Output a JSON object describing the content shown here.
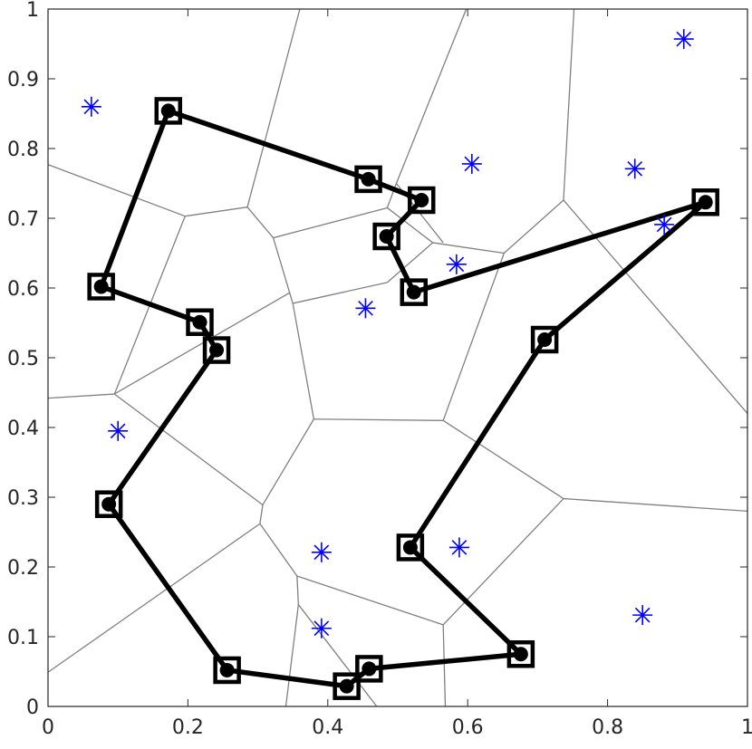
{
  "chart_data": {
    "type": "scatter",
    "title": "",
    "xlabel": "",
    "ylabel": "",
    "xlim": [
      0,
      1
    ],
    "ylim": [
      0,
      1
    ],
    "grid": false,
    "x_ticks": [
      "0",
      "0.2",
      "0.4",
      "0.6",
      "0.8",
      "1"
    ],
    "y_ticks": [
      "0",
      "0.1",
      "0.2",
      "0.3",
      "0.4",
      "0.5",
      "0.6",
      "0.7",
      "0.8",
      "0.9",
      "1"
    ],
    "colors": {
      "route": "#000000",
      "asterisk": "#0000ff",
      "voronoi": "#808080",
      "axes": "#262626"
    },
    "series": [
      {
        "marker": "asterisk",
        "points": [
          [
            0.062,
            0.86
          ],
          [
            0.1,
            0.395
          ],
          [
            0.391,
            0.221
          ],
          [
            0.391,
            0.112
          ],
          [
            0.454,
            0.571
          ],
          [
            0.584,
            0.634
          ],
          [
            0.606,
            0.778
          ],
          [
            0.588,
            0.228
          ],
          [
            0.839,
            0.771
          ],
          [
            0.881,
            0.691
          ],
          [
            0.909,
            0.957
          ],
          [
            0.85,
            0.131
          ]
        ]
      },
      {
        "marker": "circle-in-square",
        "connected": true,
        "closed": true,
        "points": [
          [
            0.172,
            0.854
          ],
          [
            0.458,
            0.756
          ],
          [
            0.534,
            0.726
          ],
          [
            0.484,
            0.674
          ],
          [
            0.523,
            0.594
          ],
          [
            0.94,
            0.723
          ],
          [
            0.71,
            0.526
          ],
          [
            0.518,
            0.228
          ],
          [
            0.676,
            0.075
          ],
          [
            0.459,
            0.054
          ],
          [
            0.427,
            0.029
          ],
          [
            0.256,
            0.052
          ],
          [
            0.087,
            0.29
          ],
          [
            0.241,
            0.511
          ],
          [
            0.217,
            0.551
          ],
          [
            0.076,
            0.602
          ]
        ]
      },
      {
        "marker": "voronoi-edges",
        "segments": [
          [
            [
              0.0,
              0.777
            ],
            [
              0.196,
              0.703
            ]
          ],
          [
            [
              0.196,
              0.703
            ],
            [
              0.285,
              0.716
            ]
          ],
          [
            [
              0.196,
              0.703
            ],
            [
              0.095,
              0.448
            ]
          ],
          [
            [
              0.0,
              0.442
            ],
            [
              0.095,
              0.448
            ]
          ],
          [
            [
              0.285,
              0.716
            ],
            [
              0.36,
              1.0
            ]
          ],
          [
            [
              0.285,
              0.716
            ],
            [
              0.322,
              0.672
            ]
          ],
          [
            [
              0.322,
              0.672
            ],
            [
              0.485,
              0.715
            ]
          ],
          [
            [
              0.322,
              0.672
            ],
            [
              0.35,
              0.578
            ]
          ],
          [
            [
              0.35,
              0.578
            ],
            [
              0.485,
              0.608
            ]
          ],
          [
            [
              0.35,
              0.578
            ],
            [
              0.38,
              0.412
            ]
          ],
          [
            [
              0.095,
              0.448
            ],
            [
              0.345,
              0.593
            ]
          ],
          [
            [
              0.095,
              0.448
            ],
            [
              0.307,
              0.289
            ]
          ],
          [
            [
              0.38,
              0.412
            ],
            [
              0.307,
              0.289
            ]
          ],
          [
            [
              0.38,
              0.412
            ],
            [
              0.565,
              0.41
            ]
          ],
          [
            [
              0.307,
              0.289
            ],
            [
              0.303,
              0.262
            ]
          ],
          [
            [
              0.303,
              0.262
            ],
            [
              0.0,
              0.049
            ]
          ],
          [
            [
              0.303,
              0.262
            ],
            [
              0.356,
              0.187
            ]
          ],
          [
            [
              0.356,
              0.187
            ],
            [
              0.358,
              0.146
            ]
          ],
          [
            [
              0.358,
              0.146
            ],
            [
              0.34,
              0.0
            ]
          ],
          [
            [
              0.358,
              0.146
            ],
            [
              0.47,
              0.0
            ]
          ],
          [
            [
              0.356,
              0.187
            ],
            [
              0.565,
              0.117
            ]
          ],
          [
            [
              0.565,
              0.117
            ],
            [
              0.568,
              0.0
            ]
          ],
          [
            [
              0.565,
              0.117
            ],
            [
              0.737,
              0.298
            ]
          ],
          [
            [
              0.565,
              0.41
            ],
            [
              0.737,
              0.298
            ]
          ],
          [
            [
              0.737,
              0.298
            ],
            [
              1.0,
              0.28
            ]
          ],
          [
            [
              0.565,
              0.41
            ],
            [
              0.652,
              0.65
            ]
          ],
          [
            [
              0.485,
              0.608
            ],
            [
              0.55,
              0.665
            ]
          ],
          [
            [
              0.55,
              0.665
            ],
            [
              0.652,
              0.65
            ]
          ],
          [
            [
              0.485,
              0.715
            ],
            [
              0.55,
              0.665
            ]
          ],
          [
            [
              0.485,
              0.715
            ],
            [
              0.498,
              0.75
            ]
          ],
          [
            [
              0.498,
              0.75
            ],
            [
              0.598,
              1.0
            ]
          ],
          [
            [
              0.498,
              0.75
            ],
            [
              0.565,
              0.665
            ]
          ],
          [
            [
              0.652,
              0.65
            ],
            [
              0.737,
              0.726
            ]
          ],
          [
            [
              0.737,
              0.726
            ],
            [
              0.752,
              1.0
            ]
          ],
          [
            [
              0.737,
              0.726
            ],
            [
              1.0,
              0.42
            ]
          ]
        ]
      }
    ]
  }
}
